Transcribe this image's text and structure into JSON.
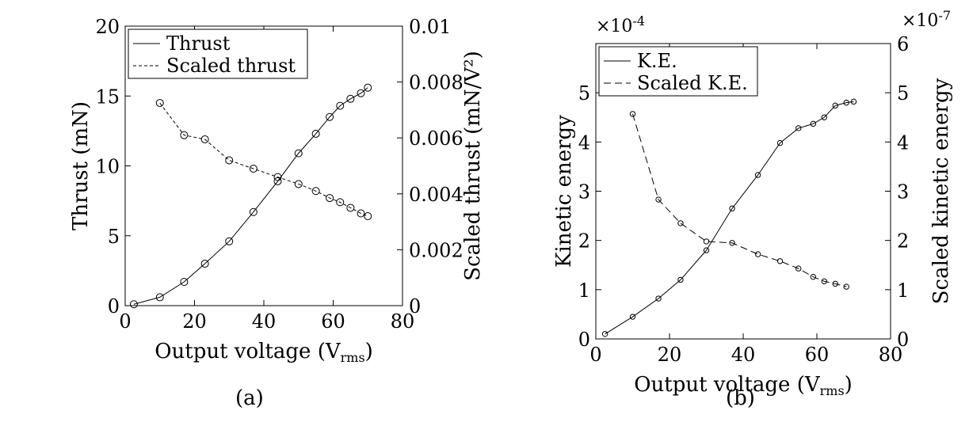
{
  "figure": {
    "panels": [
      {
        "caption": "(a)"
      },
      {
        "caption": "(b)"
      }
    ]
  },
  "chart_data": [
    {
      "type": "line",
      "caption": "(a)",
      "xlabel": "Output voltage (V",
      "xlabel_sub": "rms",
      "xlabel_end": ")",
      "ylabel_left": "Thrust (mN)",
      "ylabel_right": "Scaled thrust (mN/V²)",
      "xlim": [
        0,
        80
      ],
      "ylim_left": [
        0,
        20
      ],
      "ylim_right": [
        0,
        0.01
      ],
      "xticks": [
        0,
        20,
        40,
        60,
        80
      ],
      "xtick_labels": [
        "0",
        "20",
        "40",
        "60",
        "80"
      ],
      "yticks_left": [
        0,
        5,
        10,
        15,
        20
      ],
      "ytick_labels_left": [
        "0",
        "5",
        "10",
        "15",
        "20"
      ],
      "yticks_right": [
        0,
        0.002,
        0.004,
        0.006,
        0.008,
        0.01
      ],
      "ytick_labels_right": [
        "0",
        "0.002",
        "0.004",
        "0.006",
        "0.008",
        "0.01"
      ],
      "legend_position": "top-left",
      "grid": false,
      "series": [
        {
          "name": "Thrust",
          "axis": "left",
          "style": "solid",
          "x": [
            2.5,
            10,
            17,
            23,
            30,
            37,
            44,
            50,
            55,
            59,
            62,
            65,
            68,
            70
          ],
          "y": [
            0.1,
            0.6,
            1.7,
            3.0,
            4.6,
            6.7,
            8.9,
            10.9,
            12.3,
            13.5,
            14.3,
            14.8,
            15.2,
            15.6
          ]
        },
        {
          "name": "Scaled thrust",
          "axis": "right",
          "style": "dashed",
          "x": [
            10,
            17,
            23,
            30,
            37,
            44,
            50,
            55,
            59,
            62,
            65,
            68,
            70
          ],
          "y": [
            0.00725,
            0.0061,
            0.00595,
            0.0052,
            0.0049,
            0.0046,
            0.00435,
            0.0041,
            0.00385,
            0.0037,
            0.0035,
            0.0033,
            0.0032
          ]
        }
      ]
    },
    {
      "type": "line",
      "caption": "(b)",
      "xlabel": "Output voltage (V",
      "xlabel_sub": "rms",
      "xlabel_end": ")",
      "ylabel_left": "Kinetic energy",
      "ylabel_right": "Scaled kinetic energy",
      "multiplier_left": "×10",
      "multiplier_left_exp": "-4",
      "multiplier_right": "×10",
      "multiplier_right_exp": "-7",
      "xlim": [
        0,
        80
      ],
      "ylim_left": [
        0,
        6
      ],
      "ylim_right": [
        0,
        6
      ],
      "xticks": [
        0,
        20,
        40,
        60,
        80
      ],
      "xtick_labels": [
        "0",
        "20",
        "40",
        "60",
        "80"
      ],
      "yticks_left": [
        0,
        1,
        2,
        3,
        4,
        5
      ],
      "ytick_labels_left": [
        "0",
        "1",
        "2",
        "3",
        "4",
        "5"
      ],
      "yticks_right": [
        0,
        1,
        2,
        3,
        4,
        5,
        6
      ],
      "ytick_labels_right": [
        "0",
        "1",
        "2",
        "3",
        "4",
        "5",
        "6"
      ],
      "legend_position": "top-left",
      "grid": false,
      "series": [
        {
          "name": "K.E.",
          "axis": "left",
          "style": "solid",
          "x": [
            2.5,
            10,
            17,
            23,
            30,
            37,
            44,
            50,
            55,
            59,
            62,
            65,
            68,
            70
          ],
          "y": [
            0.1,
            0.45,
            0.82,
            1.2,
            1.8,
            2.65,
            3.33,
            3.98,
            4.28,
            4.37,
            4.5,
            4.74,
            4.8,
            4.82
          ]
        },
        {
          "name": "Scaled K.E.",
          "axis": "right",
          "style": "dashed",
          "x": [
            10,
            17,
            23,
            30,
            37,
            44,
            50,
            55,
            59,
            62,
            65,
            68
          ],
          "y": [
            4.57,
            2.83,
            2.35,
            1.98,
            1.95,
            1.72,
            1.58,
            1.43,
            1.26,
            1.17,
            1.12,
            1.06
          ]
        }
      ]
    }
  ]
}
